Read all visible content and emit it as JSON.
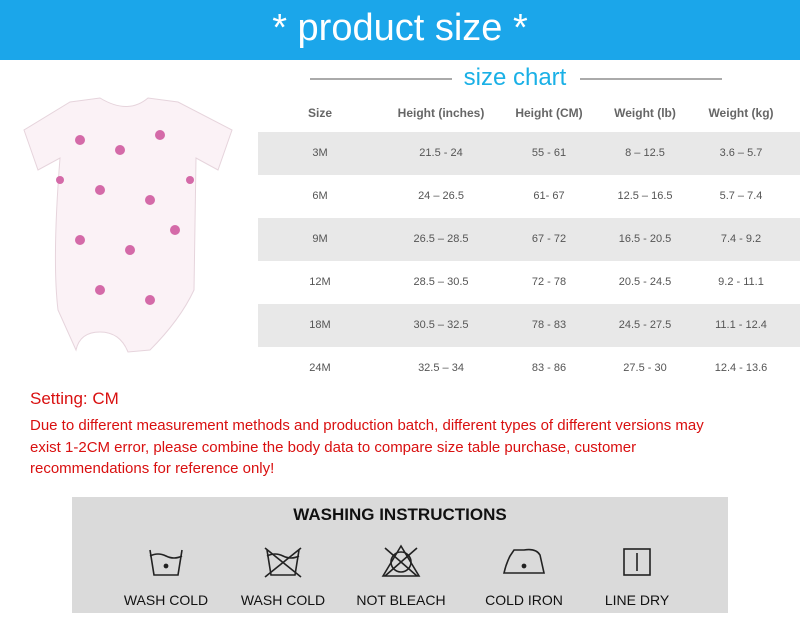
{
  "header": {
    "title": "* product size *"
  },
  "size_chart": {
    "title": "size chart",
    "columns": [
      "Size",
      "Height (inches)",
      "Height (CM)",
      "Weight (lb)",
      "Weight (kg)"
    ],
    "rows": [
      [
        "3M",
        "21.5 - 24",
        "55 - 61",
        "8 – 12.5",
        "3.6 – 5.7"
      ],
      [
        "6M",
        "24 – 26.5",
        "61- 67",
        "12.5 – 16.5",
        "5.7 – 7.4"
      ],
      [
        "9M",
        "26.5 – 28.5",
        "67 - 72",
        "16.5 - 20.5",
        "7.4 - 9.2"
      ],
      [
        "12M",
        "28.5 – 30.5",
        "72 - 78",
        "20.5 - 24.5",
        "9.2 - 11.1"
      ],
      [
        "18M",
        "30.5 – 32.5",
        "78 - 83",
        "24.5 - 27.5",
        "11.1 - 12.4"
      ],
      [
        "24M",
        "32.5 – 34",
        "83 - 86",
        "27.5 - 30",
        "12.4 - 13.6"
      ]
    ]
  },
  "note": {
    "setting": "Setting: CM",
    "lines": [
      "Due to different measurement methods and production batch, different types of different versions may",
      "exist 1-2CM error, please combine the body data to compare size table purchase, customer",
      "recommendations for reference only!"
    ]
  },
  "washing": {
    "title": "WASHING INSTRUCTIONS",
    "items": [
      {
        "label": "WASH COLD"
      },
      {
        "label": "WASH COLD"
      },
      {
        "label": "NOT BLEACH"
      },
      {
        "label": "COLD IRON"
      },
      {
        "label": "LINE DRY"
      }
    ]
  }
}
